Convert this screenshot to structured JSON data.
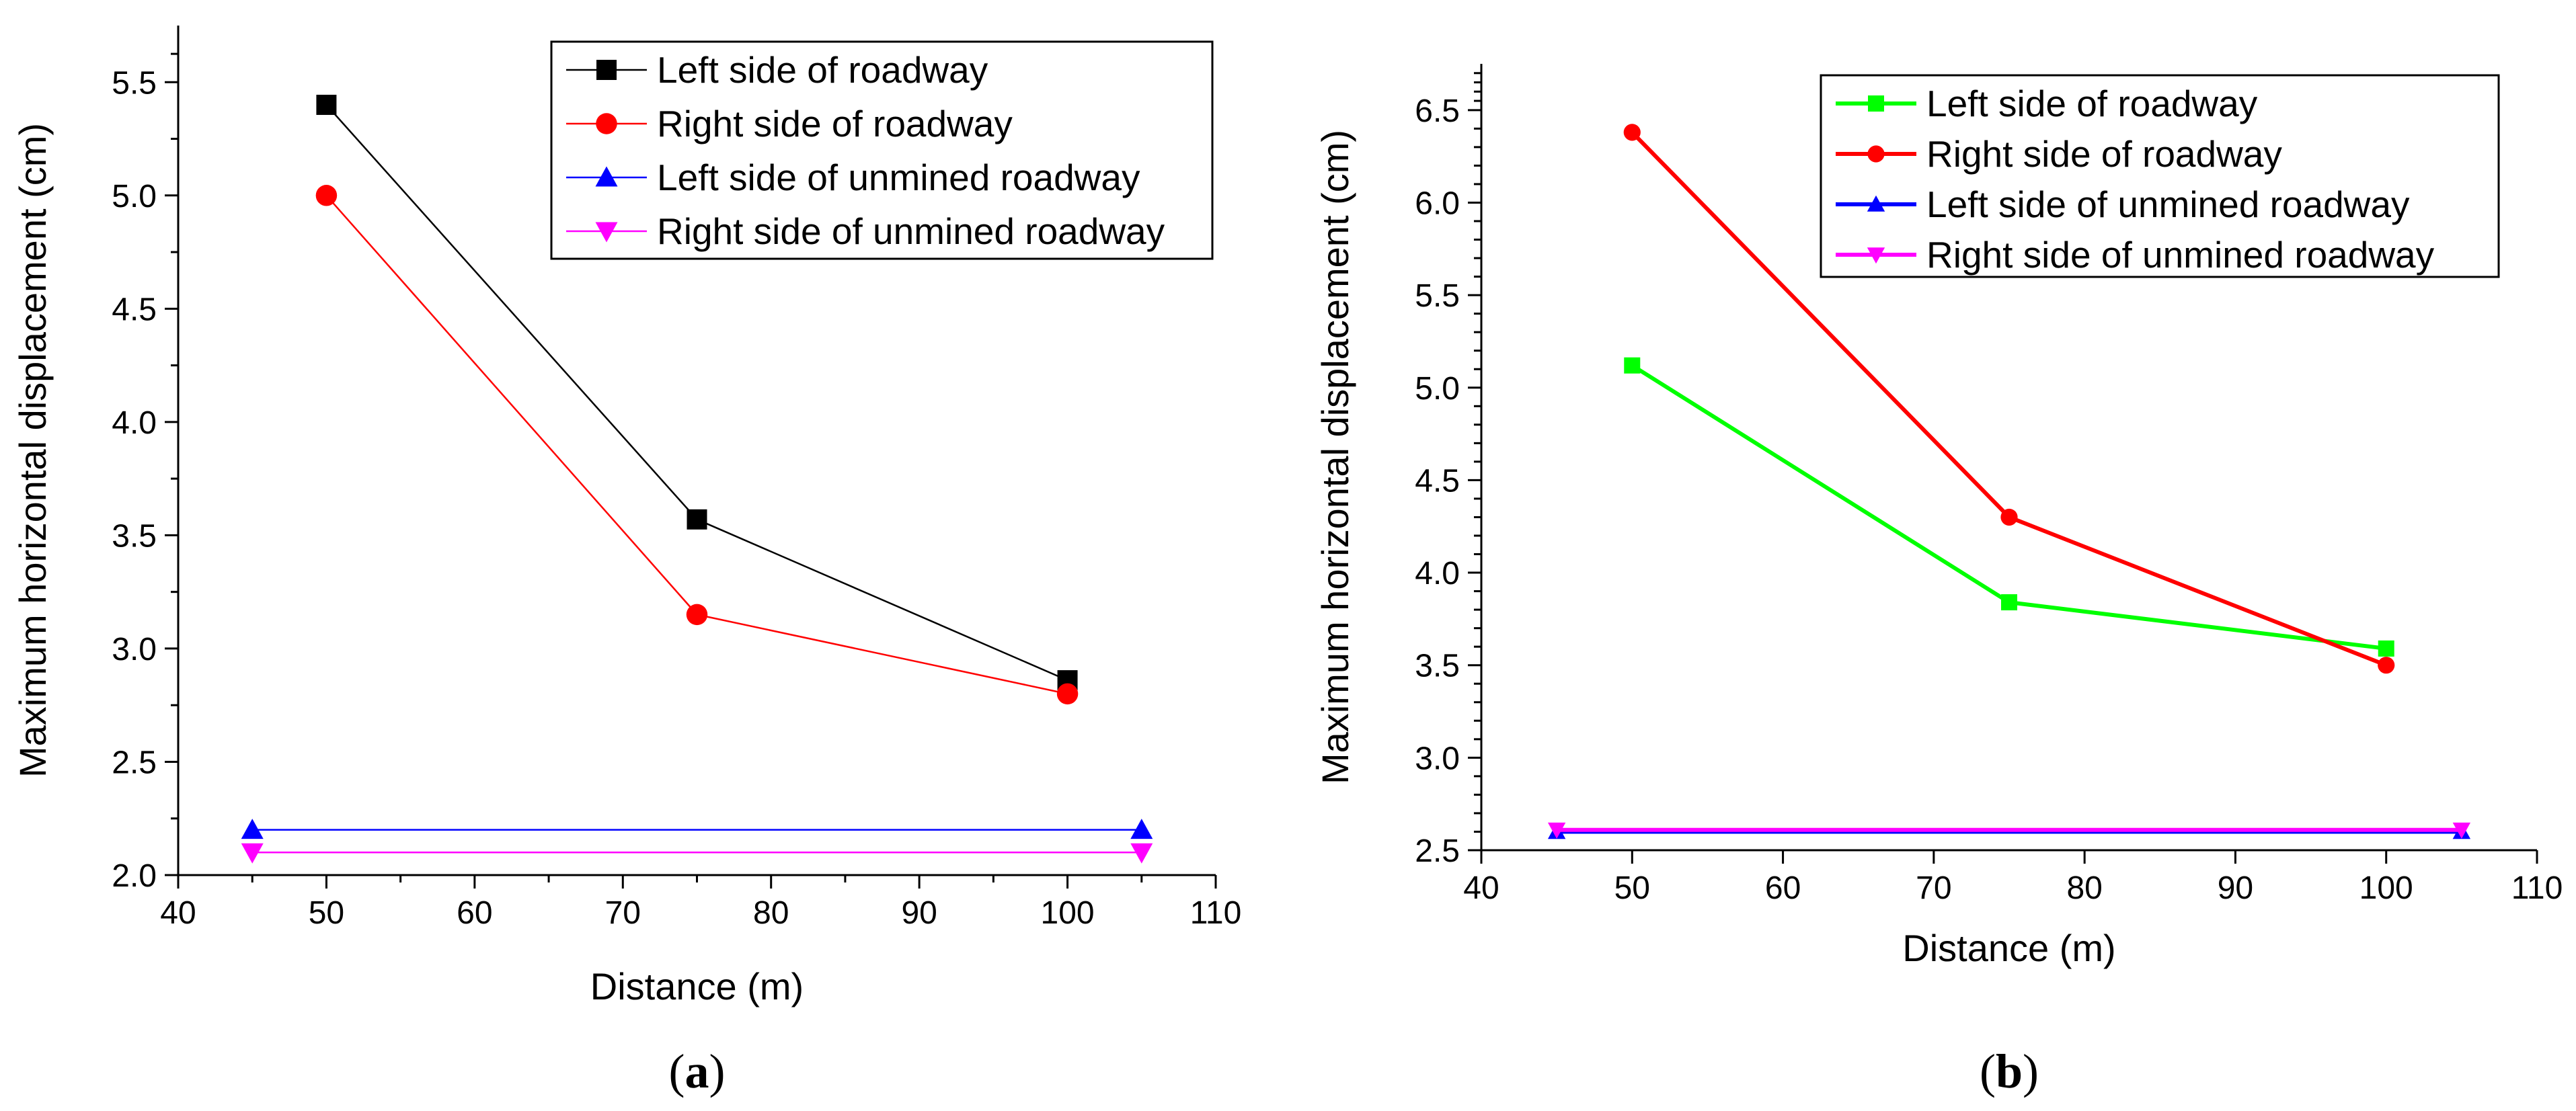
{
  "panels": [
    {
      "id": "a",
      "label_open": "(",
      "label_letter": "a",
      "label_close": ")",
      "chart_data": {
        "type": "line",
        "xlabel": "Distance (m)",
        "ylabel": "Maximum horizontal displacement (cm)",
        "xlim": [
          40,
          110
        ],
        "ylim": [
          2.0,
          5.75
        ],
        "xticks": [
          40,
          50,
          60,
          70,
          80,
          90,
          100,
          110
        ],
        "xtick_labels": [
          "40",
          "50",
          "60",
          "70",
          "80",
          "90",
          "100",
          "110"
        ],
        "yticks": [
          2.0,
          2.5,
          3.0,
          3.5,
          4.0,
          4.5,
          5.0,
          5.5
        ],
        "ytick_labels": [
          "2.0",
          "2.5",
          "3.0",
          "3.5",
          "4.0",
          "4.5",
          "5.0",
          "5.5"
        ],
        "legend_position": "top-right",
        "series": [
          {
            "name": "Left side of roadway",
            "color": "#000000",
            "marker": "square",
            "x": [
              50,
              75,
              100
            ],
            "y": [
              5.4,
              3.57,
              2.86
            ]
          },
          {
            "name": "Right side of roadway",
            "color": "#ff0000",
            "marker": "circle",
            "x": [
              50,
              75,
              100
            ],
            "y": [
              5.0,
              3.15,
              2.8
            ]
          },
          {
            "name": "Left side of unmined roadway",
            "color": "#0000ff",
            "marker": "triangle-up",
            "x": [
              45,
              105
            ],
            "y": [
              2.2,
              2.2
            ]
          },
          {
            "name": "Right side of unmined roadway",
            "color": "#ff00ff",
            "marker": "triangle-down",
            "x": [
              45,
              105
            ],
            "y": [
              2.1,
              2.1
            ]
          }
        ]
      }
    },
    {
      "id": "b",
      "label_open": "(",
      "label_letter": "b",
      "label_close": ")",
      "chart_data": {
        "type": "line",
        "xlabel": "Distance (m)",
        "ylabel": "Maximum horizontal displacement (cm)",
        "xlim": [
          40,
          110
        ],
        "ylim": [
          2.5,
          6.75
        ],
        "xticks": [
          40,
          50,
          60,
          70,
          80,
          90,
          100,
          110
        ],
        "xtick_labels": [
          "40",
          "50",
          "60",
          "70",
          "80",
          "90",
          "100",
          "110"
        ],
        "yticks": [
          2.5,
          3.0,
          3.5,
          4.0,
          4.5,
          5.0,
          5.5,
          6.0,
          6.5
        ],
        "ytick_labels": [
          "2.5",
          "3.0",
          "3.5",
          "4.0",
          "4.5",
          "5.0",
          "5.5",
          "6.0",
          "6.5"
        ],
        "legend_position": "top-right",
        "series": [
          {
            "name": "Left side of roadway",
            "color": "#00ff00",
            "marker": "square",
            "x": [
              50,
              75,
              100
            ],
            "y": [
              5.12,
              3.84,
              3.59
            ]
          },
          {
            "name": "Right side of roadway",
            "color": "#ff0000",
            "marker": "circle",
            "x": [
              50,
              75,
              100
            ],
            "y": [
              6.38,
              4.3,
              3.5
            ]
          },
          {
            "name": "Left side of unmined roadway",
            "color": "#0000ff",
            "marker": "triangle-up",
            "x": [
              45,
              105
            ],
            "y": [
              2.6,
              2.6
            ]
          },
          {
            "name": "Right side of unmined roadway",
            "color": "#ff00ff",
            "marker": "triangle-down",
            "x": [
              45,
              105
            ],
            "y": [
              2.61,
              2.61
            ]
          }
        ]
      }
    }
  ]
}
